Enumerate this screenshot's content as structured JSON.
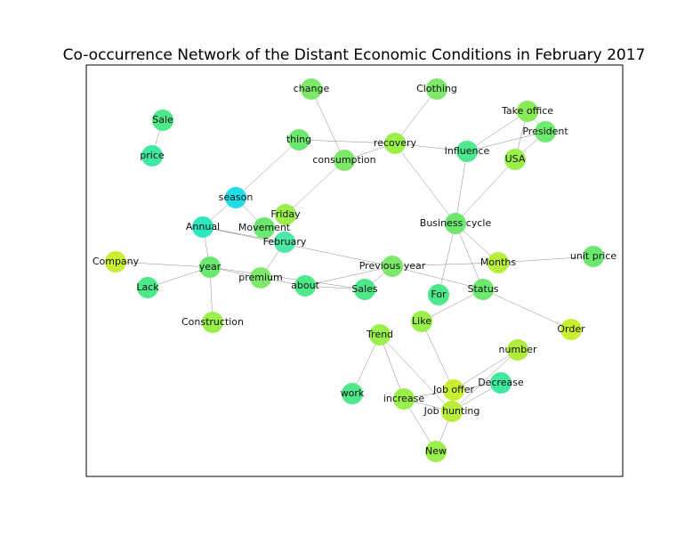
{
  "title": "Co-occurrence Network of the Distant Economic Conditions in February 2017",
  "nodes": [
    {
      "label": "change",
      "color": "#7de86a"
    },
    {
      "label": "Clothing",
      "color": "#7de86a"
    },
    {
      "label": "Sale",
      "color": "#4de88a"
    },
    {
      "label": "Take office",
      "color": "#8aeb5a"
    },
    {
      "label": "President",
      "color": "#6deb70"
    },
    {
      "label": "thing",
      "color": "#6ce870"
    },
    {
      "label": "recovery",
      "color": "#9aef4a"
    },
    {
      "label": "Influence",
      "color": "#4ee890"
    },
    {
      "label": "USA",
      "color": "#9aef4a"
    },
    {
      "label": "price",
      "color": "#40e8a0"
    },
    {
      "label": "consumption",
      "color": "#7de86a"
    },
    {
      "label": "season",
      "color": "#20dde6"
    },
    {
      "label": "Friday",
      "color": "#9aef4a"
    },
    {
      "label": "Annual",
      "color": "#2de8c0"
    },
    {
      "label": "Movement",
      "color": "#6ce870"
    },
    {
      "label": "Business cycle",
      "color": "#6ce870"
    },
    {
      "label": "February",
      "color": "#4de8a8"
    },
    {
      "label": "Company",
      "color": "#c8f030"
    },
    {
      "label": "unit price",
      "color": "#6ce870"
    },
    {
      "label": "Months",
      "color": "#b8ee38"
    },
    {
      "label": "year",
      "color": "#6ce870"
    },
    {
      "label": "Previous year",
      "color": "#7de86a"
    },
    {
      "label": "premium",
      "color": "#7de86a"
    },
    {
      "label": "Lack",
      "color": "#4de88a"
    },
    {
      "label": "about",
      "color": "#4de88a"
    },
    {
      "label": "Sales",
      "color": "#4de88a"
    },
    {
      "label": "For",
      "color": "#4de88a"
    },
    {
      "label": "Status",
      "color": "#6ce870"
    },
    {
      "label": "Construction",
      "color": "#9aef4a"
    },
    {
      "label": "Like",
      "color": "#9aef4a"
    },
    {
      "label": "Order",
      "color": "#c8f030"
    },
    {
      "label": "Trend",
      "color": "#9aef4a"
    },
    {
      "label": "number",
      "color": "#b0ec40"
    },
    {
      "label": "Decrease",
      "color": "#40e8a0"
    },
    {
      "label": "Job offer",
      "color": "#c8f030"
    },
    {
      "label": "work",
      "color": "#4de88a"
    },
    {
      "label": "increase",
      "color": "#9aef4a"
    },
    {
      "label": "Job hunting",
      "color": "#b8ee38"
    },
    {
      "label": "New",
      "color": "#9aef4a"
    }
  ]
}
